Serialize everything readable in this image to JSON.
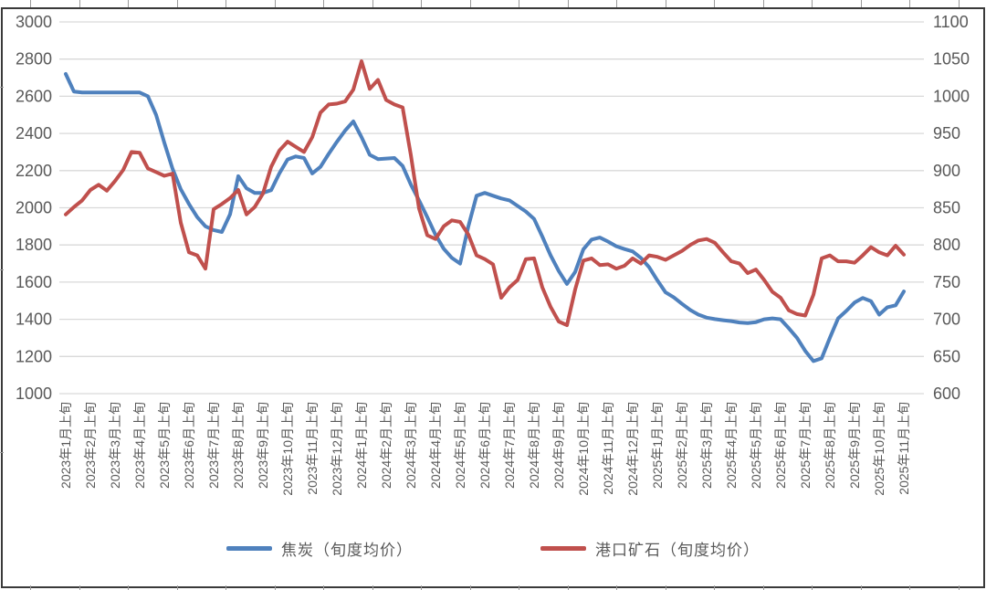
{
  "chart_data": {
    "type": "line",
    "title": "",
    "grid": "horizontal",
    "legend_position": "bottom",
    "points_per_month": 3,
    "x_labels": [
      "2023年1月上旬",
      "2023年2月上旬",
      "2023年3月上旬",
      "2023年4月上旬",
      "2023年5月上旬",
      "2023年6月上旬",
      "2023年7月上旬",
      "2023年8月上旬",
      "2023年9月上旬",
      "2023年10月上旬",
      "2023年11月上旬",
      "2023年12月上旬",
      "2024年1月上旬",
      "2024年2月上旬",
      "2024年3月上旬",
      "2024年4月上旬",
      "2024年5月上旬",
      "2024年6月上旬",
      "2024年7月上旬",
      "2024年8月上旬",
      "2024年9月上旬",
      "2024年10月上旬",
      "2024年11月上旬",
      "2024年12月上旬",
      "2025年1月上旬",
      "2025年2月上旬",
      "2025年3月上旬",
      "2025年4月上旬",
      "2025年5月上旬",
      "2025年6月上旬",
      "2025年7月上旬",
      "2025年8月上旬",
      "2025年9月上旬",
      "2025年10月上旬",
      "2025年11月上旬"
    ],
    "left_axis": {
      "min": 1000,
      "max": 3000,
      "step": 200,
      "ticks": [
        "3000",
        "2800",
        "2600",
        "2400",
        "2200",
        "2000",
        "1800",
        "1600",
        "1400",
        "1200",
        "1000"
      ]
    },
    "right_axis": {
      "min": 600,
      "max": 1100,
      "step": 50,
      "ticks": [
        "1100",
        "1050",
        "1000",
        "950",
        "900",
        "850",
        "800",
        "750",
        "700",
        "650",
        "600"
      ]
    },
    "series": [
      {
        "name": "焦炭（旬度均价）",
        "axis": "left",
        "color": "#4f81bd",
        "values": [
          2720,
          2625,
          2620,
          2620,
          2620,
          2620,
          2620,
          2620,
          2620,
          2620,
          2600,
          2500,
          2350,
          2210,
          2100,
          2020,
          1950,
          1900,
          1880,
          1870,
          1965,
          2170,
          2105,
          2080,
          2080,
          2095,
          2185,
          2260,
          2276,
          2268,
          2185,
          2220,
          2290,
          2355,
          2415,
          2465,
          2380,
          2285,
          2262,
          2265,
          2268,
          2225,
          2125,
          2040,
          1950,
          1855,
          1780,
          1730,
          1700,
          1900,
          2065,
          2080,
          2065,
          2050,
          2040,
          2010,
          1980,
          1940,
          1845,
          1745,
          1660,
          1590,
          1655,
          1777,
          1829,
          1840,
          1818,
          1793,
          1778,
          1765,
          1730,
          1680,
          1610,
          1545,
          1518,
          1483,
          1450,
          1425,
          1409,
          1401,
          1395,
          1390,
          1383,
          1380,
          1385,
          1400,
          1405,
          1400,
          1352,
          1300,
          1230,
          1175,
          1190,
          1300,
          1405,
          1445,
          1490,
          1515,
          1498,
          1425,
          1465,
          1475,
          1550
        ]
      },
      {
        "name": "港口矿石（旬度均价）",
        "axis": "right",
        "color": "#c0504d",
        "values": [
          841,
          851,
          860,
          874,
          881,
          873,
          886,
          901,
          925,
          924,
          903,
          898,
          893,
          896,
          830,
          790,
          786,
          768,
          848,
          855,
          863,
          874,
          841,
          851,
          869,
          905,
          927,
          939,
          932,
          925,
          945,
          978,
          989,
          990,
          993,
          1009,
          1047,
          1010,
          1022,
          995,
          989,
          985,
          921,
          849,
          813,
          808,
          825,
          833,
          831,
          814,
          786,
          781,
          774,
          729,
          743,
          753,
          781,
          782,
          743,
          717,
          697,
          692,
          740,
          779,
          782,
          773,
          774,
          768,
          772,
          782,
          775,
          786,
          784,
          780,
          786,
          792,
          800,
          806,
          808,
          803,
          790,
          778,
          775,
          762,
          767,
          753,
          737,
          729,
          712,
          707,
          705,
          733,
          782,
          786,
          778,
          778,
          776,
          786,
          797,
          790,
          786,
          799,
          787
        ]
      }
    ]
  },
  "legend": {
    "items": [
      {
        "label": "焦炭（旬度均价）",
        "color": "#4f81bd"
      },
      {
        "label": "港口矿石（旬度均价）",
        "color": "#c0504d"
      }
    ]
  },
  "colors": {
    "gridline": "#d9d9d9",
    "axis_text": "#595959",
    "frame": "#3a3a3a",
    "background": "#ffffff"
  }
}
